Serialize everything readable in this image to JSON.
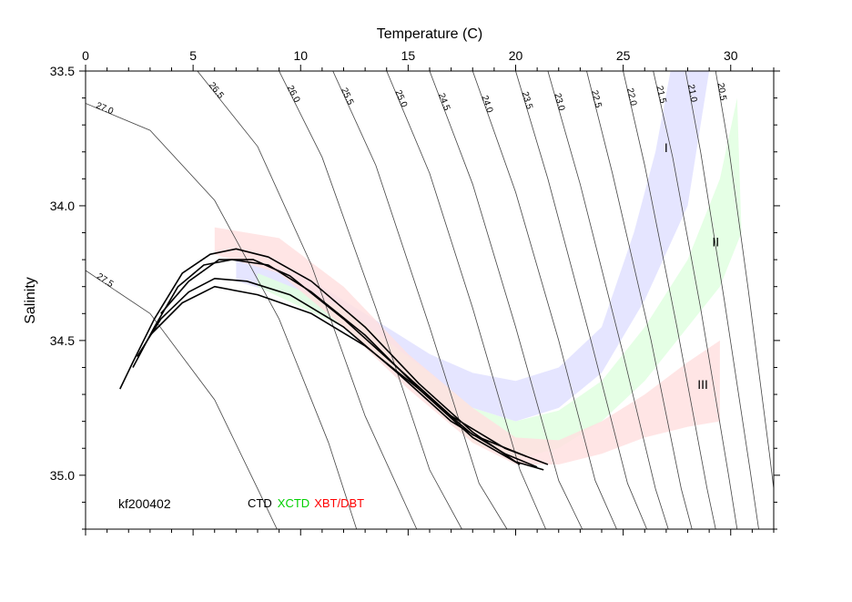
{
  "chart_data": {
    "type": "scatter",
    "title": "",
    "xlabel": "Temperature (C)",
    "ylabel": "Salinity",
    "xlim": [
      0,
      32
    ],
    "ylim": [
      35.2,
      33.5
    ],
    "y_inverted": true,
    "x_ticks": [
      0,
      5,
      10,
      15,
      20,
      25,
      30
    ],
    "x_tick_labels": [
      "0",
      "5",
      "10",
      "15",
      "20",
      "25",
      "30"
    ],
    "y_ticks": [
      33.5,
      34.0,
      34.5,
      35.0
    ],
    "y_tick_labels": [
      "33.5",
      "34.0",
      "34.5",
      "35.0"
    ],
    "cruise_label": "kf200402",
    "legend": [
      {
        "label": "CTD",
        "color": "#000000"
      },
      {
        "label": "XCTD",
        "color": "#00d000"
      },
      {
        "label": "XBT/DBT",
        "color": "#ff0000"
      }
    ],
    "isopycnals": [
      {
        "label": "27.5",
        "points": [
          [
            0,
            34.24
          ],
          [
            3,
            34.4
          ],
          [
            6,
            34.72
          ],
          [
            8,
            35.05
          ],
          [
            8.9,
            35.2
          ]
        ]
      },
      {
        "label": "27.0",
        "points": [
          [
            0,
            33.62
          ],
          [
            3,
            33.72
          ],
          [
            6,
            33.98
          ],
          [
            9,
            34.42
          ],
          [
            11.3,
            34.88
          ],
          [
            12.6,
            35.2
          ]
        ]
      },
      {
        "label": "26.5",
        "points": [
          [
            5.2,
            33.5
          ],
          [
            8,
            33.78
          ],
          [
            10.5,
            34.22
          ],
          [
            13,
            34.78
          ],
          [
            15.4,
            35.2
          ]
        ]
      },
      {
        "label": "26.0",
        "points": [
          [
            9,
            33.5
          ],
          [
            11,
            33.82
          ],
          [
            13.5,
            34.38
          ],
          [
            16,
            34.98
          ],
          [
            17.5,
            35.2
          ]
        ]
      },
      {
        "label": "25.5",
        "points": [
          [
            11.5,
            33.5
          ],
          [
            13.5,
            33.85
          ],
          [
            16,
            34.45
          ],
          [
            18.3,
            35.03
          ],
          [
            19.6,
            35.2
          ]
        ]
      },
      {
        "label": "25.0",
        "points": [
          [
            14,
            33.5
          ],
          [
            16,
            33.88
          ],
          [
            18,
            34.38
          ],
          [
            20.2,
            34.98
          ],
          [
            21.4,
            35.2
          ]
        ]
      },
      {
        "label": "24.5",
        "points": [
          [
            16,
            33.5
          ],
          [
            18,
            33.92
          ],
          [
            20,
            34.45
          ],
          [
            22,
            35.02
          ],
          [
            23.1,
            35.2
          ]
        ]
      },
      {
        "label": "24.0",
        "points": [
          [
            18,
            33.5
          ],
          [
            20,
            33.95
          ],
          [
            22,
            34.5
          ],
          [
            23.7,
            35.02
          ],
          [
            24.7,
            35.2
          ]
        ]
      },
      {
        "label": "23.5",
        "points": [
          [
            20,
            33.5
          ],
          [
            21.5,
            33.9
          ],
          [
            23.5,
            34.5
          ],
          [
            25.2,
            35.03
          ],
          [
            26.1,
            35.2
          ]
        ]
      },
      {
        "label": "23.0",
        "points": [
          [
            21.5,
            33.5
          ],
          [
            23,
            33.92
          ],
          [
            25,
            34.55
          ],
          [
            26.5,
            35.05
          ],
          [
            27.1,
            35.2
          ]
        ]
      },
      {
        "label": "22.5",
        "points": [
          [
            23.3,
            33.5
          ],
          [
            24.5,
            33.88
          ],
          [
            26.3,
            34.5
          ],
          [
            27.7,
            35.05
          ],
          [
            28.2,
            35.2
          ]
        ]
      },
      {
        "label": "22.0",
        "points": [
          [
            25,
            33.5
          ],
          [
            26,
            33.85
          ],
          [
            27.5,
            34.45
          ],
          [
            28.9,
            35.05
          ],
          [
            29.3,
            35.2
          ]
        ]
      },
      {
        "label": "21.5",
        "points": [
          [
            26.4,
            33.5
          ],
          [
            27.3,
            33.82
          ],
          [
            28.6,
            34.38
          ],
          [
            29.9,
            35.0
          ],
          [
            30.3,
            35.2
          ]
        ]
      },
      {
        "label": "21.0",
        "points": [
          [
            27.9,
            33.5
          ],
          [
            28.6,
            33.8
          ],
          [
            29.7,
            34.35
          ],
          [
            30.9,
            34.98
          ],
          [
            31.3,
            35.2
          ]
        ]
      },
      {
        "label": "20.5",
        "points": [
          [
            29.3,
            33.5
          ],
          [
            29.9,
            33.78
          ],
          [
            30.8,
            34.3
          ],
          [
            31.8,
            34.92
          ],
          [
            32,
            35.05
          ]
        ]
      }
    ],
    "regions": [
      {
        "label": "I",
        "color": "#e0e0ff",
        "label_pos": [
          27,
          33.8
        ],
        "upper": [
          [
            7,
            34.2
          ],
          [
            10,
            34.25
          ],
          [
            13,
            34.4
          ],
          [
            16,
            34.55
          ],
          [
            18,
            34.62
          ],
          [
            20,
            34.65
          ],
          [
            22,
            34.6
          ],
          [
            24,
            34.45
          ],
          [
            25.5,
            34.1
          ],
          [
            26.5,
            33.8
          ],
          [
            27.2,
            33.5
          ]
        ],
        "lower": [
          [
            7,
            34.28
          ],
          [
            10,
            34.35
          ],
          [
            13,
            34.5
          ],
          [
            16,
            34.65
          ],
          [
            18,
            34.75
          ],
          [
            20,
            34.8
          ],
          [
            22,
            34.75
          ],
          [
            24,
            34.62
          ],
          [
            26,
            34.35
          ],
          [
            28,
            34.0
          ],
          [
            29,
            33.5
          ]
        ]
      },
      {
        "label": "II",
        "color": "#e0ffe0",
        "label_pos": [
          29.3,
          34.15
        ],
        "upper": [
          [
            8,
            34.25
          ],
          [
            12,
            34.38
          ],
          [
            16,
            34.62
          ],
          [
            18,
            34.75
          ],
          [
            20,
            34.8
          ],
          [
            22,
            34.76
          ],
          [
            24,
            34.65
          ],
          [
            26,
            34.45
          ],
          [
            28,
            34.2
          ],
          [
            29.5,
            33.9
          ],
          [
            30.3,
            33.6
          ]
        ],
        "lower": [
          [
            8,
            34.3
          ],
          [
            12,
            34.45
          ],
          [
            16,
            34.72
          ],
          [
            18,
            34.88
          ],
          [
            20,
            34.94
          ],
          [
            22,
            34.9
          ],
          [
            24,
            34.8
          ],
          [
            26,
            34.65
          ],
          [
            28,
            34.45
          ],
          [
            29.5,
            34.3
          ],
          [
            30.5,
            34.1
          ]
        ]
      },
      {
        "label": "III",
        "color": "#ffe0e0",
        "label_pos": [
          28.7,
          34.68
        ],
        "upper": [
          [
            6,
            34.08
          ],
          [
            9,
            34.12
          ],
          [
            12,
            34.3
          ],
          [
            15,
            34.55
          ],
          [
            18,
            34.75
          ],
          [
            20,
            34.86
          ],
          [
            22,
            34.87
          ],
          [
            24,
            34.8
          ],
          [
            26,
            34.7
          ],
          [
            28,
            34.58
          ],
          [
            29.5,
            34.5
          ]
        ],
        "lower": [
          [
            6,
            34.18
          ],
          [
            9,
            34.25
          ],
          [
            12,
            34.45
          ],
          [
            15,
            34.68
          ],
          [
            18,
            34.88
          ],
          [
            20,
            34.96
          ],
          [
            22,
            34.96
          ],
          [
            24,
            34.92
          ],
          [
            26,
            34.86
          ],
          [
            28,
            34.82
          ],
          [
            29.5,
            34.8
          ]
        ]
      }
    ],
    "series": [
      {
        "name": "CTD",
        "color": "#000000",
        "profiles": [
          {
            "points": [
              [
                1.6,
                34.68
              ],
              [
                2.2,
                34.58
              ],
              [
                3.2,
                34.42
              ],
              [
                4.5,
                34.25
              ],
              [
                5.8,
                34.18
              ],
              [
                7,
                34.16
              ],
              [
                8.5,
                34.19
              ],
              [
                10.5,
                34.28
              ],
              [
                13,
                34.45
              ],
              [
                15.5,
                34.66
              ],
              [
                18,
                34.84
              ],
              [
                20,
                34.95
              ],
              [
                21.3,
                34.98
              ]
            ]
          },
          {
            "points": [
              [
                2.2,
                34.6
              ],
              [
                3.2,
                34.45
              ],
              [
                4.3,
                34.3
              ],
              [
                5.5,
                34.22
              ],
              [
                6.8,
                34.2
              ],
              [
                8.5,
                34.22
              ],
              [
                10.5,
                34.32
              ],
              [
                13,
                34.48
              ],
              [
                15.5,
                34.68
              ],
              [
                18,
                34.86
              ],
              [
                20.2,
                34.96
              ]
            ]
          },
          {
            "points": [
              [
                2.4,
                34.56
              ],
              [
                3.5,
                34.42
              ],
              [
                4.8,
                34.32
              ],
              [
                6,
                34.27
              ],
              [
                7.5,
                34.28
              ],
              [
                9.5,
                34.33
              ],
              [
                12,
                34.45
              ],
              [
                14.5,
                34.62
              ],
              [
                17,
                34.8
              ],
              [
                19.5,
                34.92
              ],
              [
                21,
                34.97
              ]
            ]
          },
          {
            "points": [
              [
                3,
                34.48
              ],
              [
                4.5,
                34.36
              ],
              [
                6,
                34.3
              ],
              [
                8,
                34.33
              ],
              [
                10.5,
                34.4
              ],
              [
                13,
                34.52
              ],
              [
                15.5,
                34.68
              ],
              [
                18,
                34.85
              ],
              [
                20.5,
                34.93
              ]
            ]
          },
          {
            "points": [
              [
                3.5,
                34.4
              ],
              [
                4.8,
                34.28
              ],
              [
                6.2,
                34.2
              ],
              [
                7.8,
                34.2
              ],
              [
                9.5,
                34.26
              ],
              [
                12,
                34.42
              ],
              [
                14.5,
                34.6
              ],
              [
                17,
                34.78
              ],
              [
                19.5,
                34.9
              ],
              [
                21.5,
                34.96
              ]
            ]
          }
        ]
      },
      {
        "name": "XCTD",
        "color": "#00d000",
        "profiles": []
      },
      {
        "name": "XBT/DBT",
        "color": "#ff0000",
        "profiles": []
      }
    ]
  }
}
